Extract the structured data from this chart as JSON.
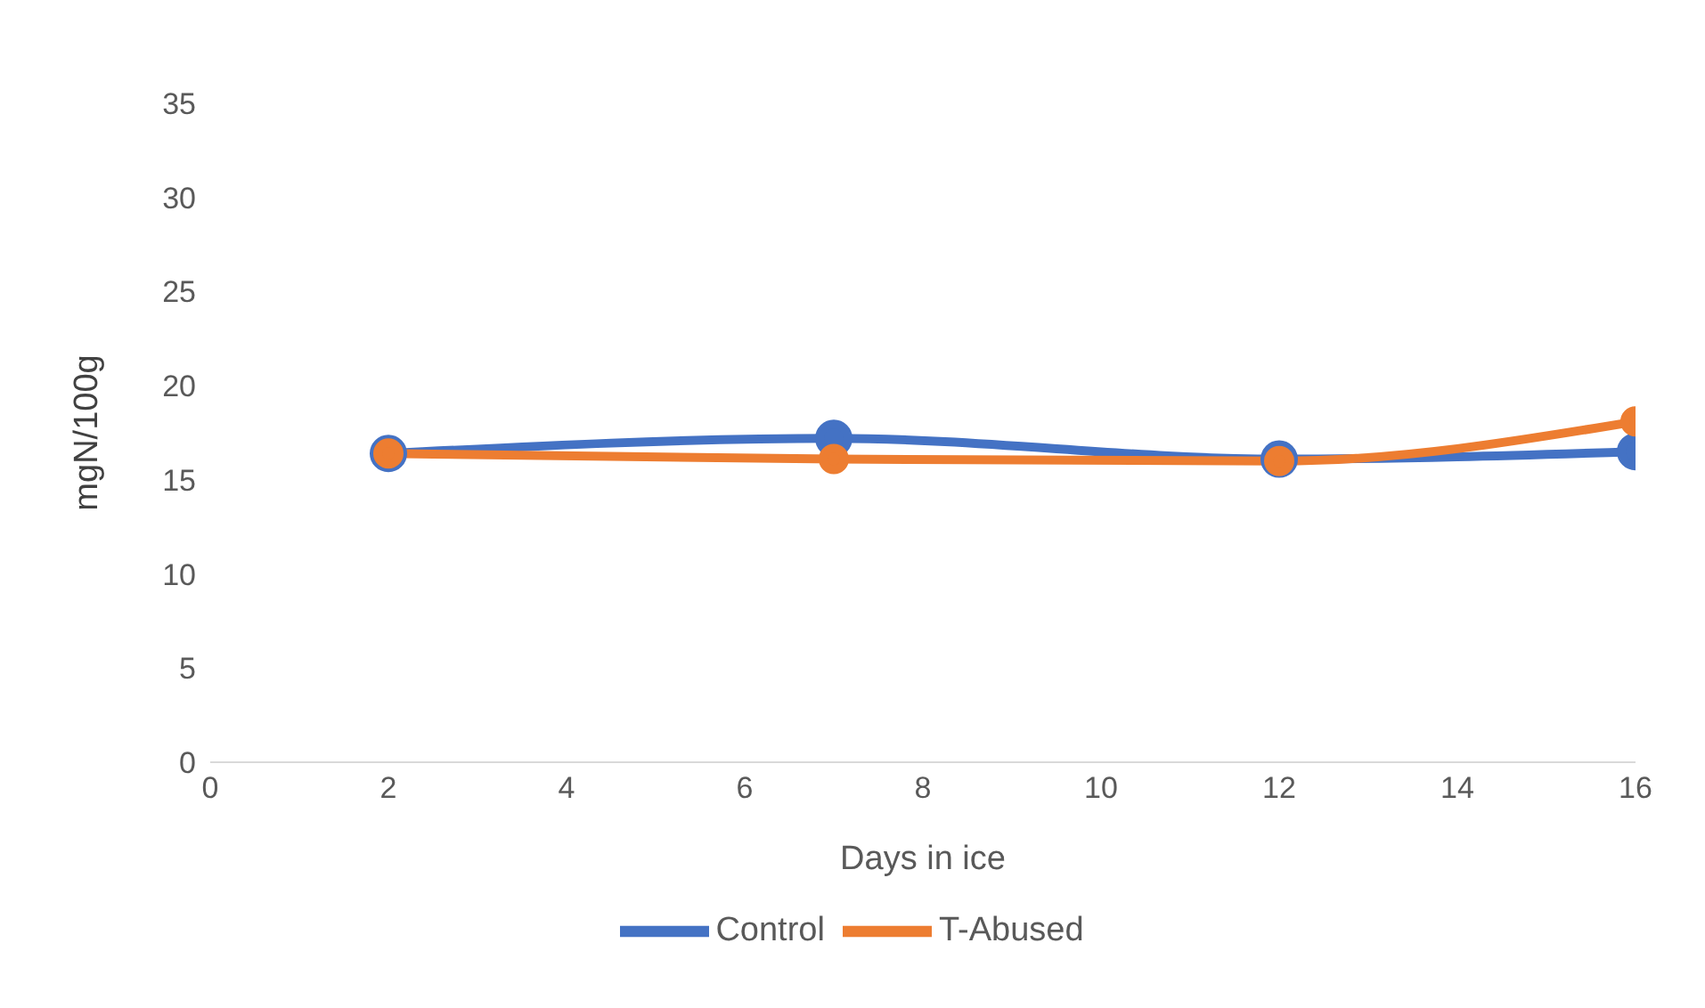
{
  "chart_data": {
    "type": "line",
    "xlabel": "Days in ice",
    "ylabel": "mgN/100g",
    "x": [
      2,
      7,
      12,
      16
    ],
    "series": [
      {
        "name": "Control",
        "color": "#4472c4",
        "values": [
          16.4,
          17.2,
          16.1,
          16.5
        ]
      },
      {
        "name": "T-Abused",
        "color": "#ed7d31",
        "values": [
          16.4,
          16.1,
          16.0,
          18.1
        ]
      }
    ],
    "xlim": [
      0,
      16
    ],
    "xticks": [
      0,
      2,
      4,
      6,
      8,
      10,
      12,
      14,
      16
    ],
    "ylim": [
      0,
      35
    ],
    "yticks": [
      0,
      5,
      10,
      15,
      20,
      25,
      30,
      35
    ],
    "grid": false,
    "legend": "bottom",
    "marker": "circle",
    "line_style": "solid"
  }
}
